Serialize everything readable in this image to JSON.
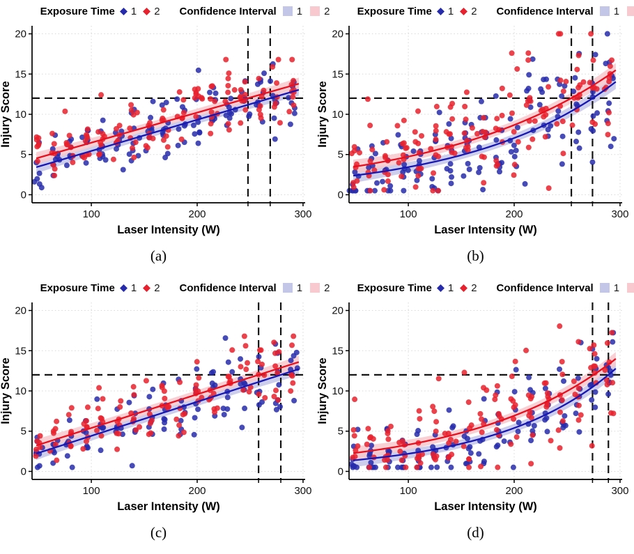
{
  "figure": {
    "background": "#ffffff",
    "legend": {
      "exposure_label": "Exposure Time",
      "ci_label": "Confidence Interval",
      "level1": "1",
      "level2": "2",
      "marker1_color": "#262BAB",
      "marker2_color": "#E7212D",
      "band1_color": "#C4C6E7",
      "band2_color": "#F8C9CE"
    },
    "axes": {
      "xlabel": "Laser Intensity (W)",
      "ylabel": "Injury Score"
    },
    "style": {
      "grid_color": "#D8D8D8",
      "axis_color": "#000000",
      "dash_color": "#141414",
      "blue_line": "#1717B5",
      "red_line": "#E8101E",
      "blue_point": "#262BAB",
      "red_point": "#E7212D"
    }
  },
  "chart_data": [
    {
      "label": "(a)",
      "type": "scatter",
      "title": "",
      "xlabel": "Laser Intensity (W)",
      "ylabel": "Injury Score",
      "xlim": [
        44,
        302
      ],
      "ylim": [
        -1,
        21
      ],
      "xticks": [
        100,
        200,
        300
      ],
      "yticks": [
        0,
        5,
        10,
        15,
        20
      ],
      "grid": "dotted",
      "threshold_y": 12,
      "vlines": [
        248,
        269
      ],
      "line_x_range": [
        48,
        296
      ],
      "series": [
        {
          "name": "Exposure Time 1",
          "kind": "linear",
          "a": 1.56,
          "b": 0.0388,
          "point_color": "#262BAB",
          "line_color": "#1717B5",
          "band_color": "#C4C6E7",
          "band_halfwidth": 0.48,
          "band_flare": 0.3
        },
        {
          "name": "Exposure Time 2",
          "kind": "linear",
          "a": 2.73,
          "b": 0.0374,
          "point_color": "#E7212D",
          "line_color": "#E8101E",
          "band_color": "#F8C9CE",
          "band_halfwidth": 0.48,
          "band_flare": 0.3
        }
      ],
      "scatter": {
        "x_levels": [
          50,
          65,
          80,
          95,
          110,
          125,
          140,
          155,
          170,
          185,
          200,
          215,
          230,
          245,
          260,
          275,
          290
        ],
        "n_per_level": 8,
        "noise_sd": 1.45,
        "noise_growth": 0.5,
        "outlier_rate": 0.05,
        "outlier_extra": 2.5,
        "x_jitter": 2.2,
        "y_clamp": [
          0.4,
          16.8
        ],
        "seed": 7
      }
    },
    {
      "label": "(b)",
      "type": "scatter",
      "title": "",
      "xlabel": "Laser Intensity (W)",
      "ylabel": "Injury Score",
      "xlim": [
        44,
        302
      ],
      "ylim": [
        -1,
        21
      ],
      "xticks": [
        100,
        200,
        300
      ],
      "yticks": [
        0,
        5,
        10,
        15,
        20
      ],
      "grid": "dotted",
      "threshold_y": 12,
      "vlines": [
        254,
        274
      ],
      "line_x_range": [
        48,
        296
      ],
      "series": [
        {
          "name": "Exposure Time 1",
          "kind": "exp",
          "a": 1.676,
          "b": 0.00718,
          "point_color": "#262BAB",
          "line_color": "#1717B5",
          "band_color": "#C4C6E7",
          "band_halfwidth": 0.5,
          "band_flare": 0.42
        },
        {
          "name": "Exposure Time 2",
          "kind": "exp",
          "a": 2.59,
          "b": 0.00604,
          "point_color": "#E7212D",
          "line_color": "#E8101E",
          "band_color": "#F8C9CE",
          "band_halfwidth": 0.5,
          "band_flare": 0.42
        }
      ],
      "scatter": {
        "x_levels": [
          50,
          65,
          80,
          95,
          110,
          125,
          140,
          155,
          170,
          185,
          200,
          215,
          230,
          245,
          260,
          275,
          290
        ],
        "n_per_level": 9,
        "noise_sd": 2.0,
        "noise_growth": 0.9,
        "outlier_rate": 0.06,
        "outlier_extra": 4.5,
        "x_jitter": 2.2,
        "y_clamp": [
          0.5,
          20.0
        ],
        "seed": 13
      }
    },
    {
      "label": "(c)",
      "type": "scatter",
      "title": "",
      "xlabel": "Laser Intensity (W)",
      "ylabel": "Injury Score",
      "xlim": [
        44,
        302
      ],
      "ylim": [
        -1,
        21
      ],
      "xticks": [
        100,
        200,
        300
      ],
      "yticks": [
        0,
        5,
        10,
        15,
        20
      ],
      "grid": "dotted",
      "threshold_y": 12,
      "vlines": [
        258,
        279
      ],
      "line_x_range": [
        48,
        296
      ],
      "series": [
        {
          "name": "Exposure Time 1",
          "kind": "linear",
          "a": 0.18,
          "b": 0.04236,
          "point_color": "#262BAB",
          "line_color": "#1717B5",
          "band_color": "#C4C6E7",
          "band_halfwidth": 0.5,
          "band_flare": 0.32
        },
        {
          "name": "Exposure Time 2",
          "kind": "linear",
          "a": 1.21,
          "b": 0.04183,
          "point_color": "#E7212D",
          "line_color": "#E8101E",
          "band_color": "#F8C9CE",
          "band_halfwidth": 0.5,
          "band_flare": 0.32
        }
      ],
      "scatter": {
        "x_levels": [
          50,
          65,
          80,
          95,
          110,
          125,
          140,
          155,
          170,
          185,
          200,
          215,
          230,
          245,
          260,
          275,
          290
        ],
        "n_per_level": 7,
        "noise_sd": 1.65,
        "noise_growth": 0.45,
        "outlier_rate": 0.04,
        "outlier_extra": 2.5,
        "x_jitter": 2.2,
        "y_clamp": [
          0.5,
          16.8
        ],
        "seed": 5
      }
    },
    {
      "label": "(d)",
      "type": "scatter",
      "title": "",
      "xlabel": "Laser Intensity (W)",
      "ylabel": "Injury Score",
      "xlim": [
        44,
        302
      ],
      "ylim": [
        -1,
        21
      ],
      "xticks": [
        100,
        200,
        300
      ],
      "yticks": [
        0,
        5,
        10,
        15,
        20
      ],
      "grid": "dotted",
      "threshold_y": 12,
      "vlines": [
        274,
        289
      ],
      "line_x_range": [
        48,
        296
      ],
      "series": [
        {
          "name": "Exposure Time 1",
          "kind": "exp",
          "a": 0.893,
          "b": 0.00899,
          "point_color": "#262BAB",
          "line_color": "#1717B5",
          "band_color": "#C4C6E7",
          "band_halfwidth": 0.5,
          "band_flare": 0.38
        },
        {
          "name": "Exposure Time 2",
          "kind": "exp",
          "a": 1.594,
          "b": 0.00734,
          "point_color": "#E7212D",
          "line_color": "#E8101E",
          "band_color": "#F8C9CE",
          "band_halfwidth": 0.5,
          "band_flare": 0.38
        }
      ],
      "scatter": {
        "x_levels": [
          50,
          65,
          80,
          95,
          110,
          125,
          140,
          155,
          170,
          185,
          200,
          215,
          230,
          245,
          260,
          275,
          290
        ],
        "n_per_level": 8,
        "noise_sd": 1.8,
        "noise_growth": 0.85,
        "outlier_rate": 0.06,
        "outlier_extra": 4.5,
        "x_jitter": 2.2,
        "y_clamp": [
          0.5,
          20.0
        ],
        "seed": 21
      }
    }
  ]
}
